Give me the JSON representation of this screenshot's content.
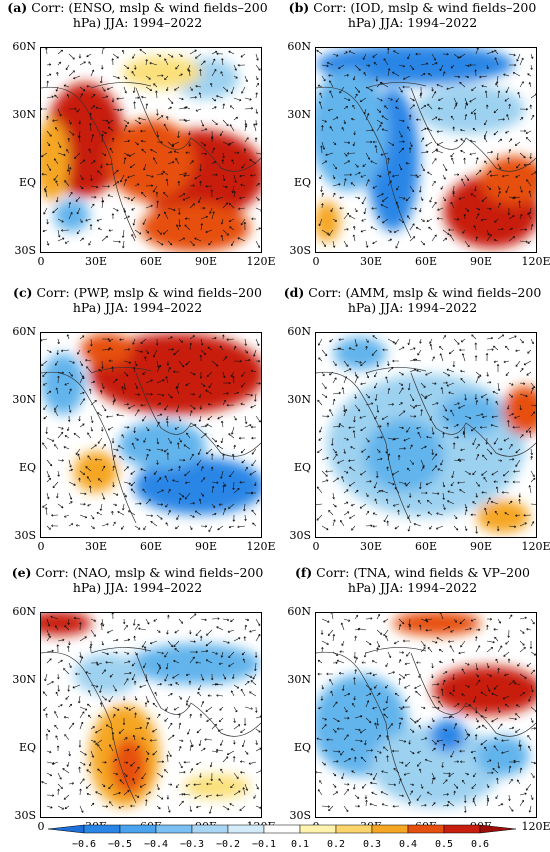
{
  "panels": [
    {
      "id": "a",
      "letter": "(a)",
      "title": " Corr: (ENSO, mslp & wind fields–200 hPa) JJA: 1994–2022",
      "blobs": [
        [
          "#c81e10",
          0.2,
          0.45,
          0.18,
          0.28
        ],
        [
          "#c81e10",
          0.72,
          0.62,
          0.3,
          0.22
        ],
        [
          "#e6500f",
          0.5,
          0.55,
          0.2,
          0.2
        ],
        [
          "#f5a623",
          0.05,
          0.55,
          0.08,
          0.2
        ],
        [
          "#9dd1f0",
          0.75,
          0.15,
          0.15,
          0.1
        ],
        [
          "#62b4ec",
          0.14,
          0.82,
          0.08,
          0.08
        ],
        [
          "#fbe07a",
          0.55,
          0.12,
          0.18,
          0.08
        ],
        [
          "#e6500f",
          0.7,
          0.88,
          0.25,
          0.12
        ]
      ]
    },
    {
      "id": "b",
      "letter": "(b)",
      "title": " Corr: (IOD, mslp & wind fields–200 hPa) JJA: 1994–2022",
      "blobs": [
        [
          "#2a86e6",
          0.45,
          0.08,
          0.45,
          0.1
        ],
        [
          "#2a86e6",
          0.35,
          0.55,
          0.12,
          0.35
        ],
        [
          "#62b4ec",
          0.15,
          0.4,
          0.18,
          0.3
        ],
        [
          "#c81e10",
          0.8,
          0.8,
          0.22,
          0.18
        ],
        [
          "#e6500f",
          0.9,
          0.65,
          0.15,
          0.12
        ],
        [
          "#9dd1f0",
          0.7,
          0.3,
          0.25,
          0.12
        ],
        [
          "#f5a623",
          0.05,
          0.85,
          0.06,
          0.1
        ]
      ]
    },
    {
      "id": "c",
      "letter": "(c)",
      "title": " Corr: (PWP, mslp & wind fields–200 hPa) JJA: 1994–2022",
      "blobs": [
        [
          "#c81e10",
          0.62,
          0.2,
          0.4,
          0.2
        ],
        [
          "#e6500f",
          0.3,
          0.08,
          0.12,
          0.08
        ],
        [
          "#2a86e6",
          0.72,
          0.75,
          0.3,
          0.14
        ],
        [
          "#62b4ec",
          0.55,
          0.55,
          0.2,
          0.12
        ],
        [
          "#f5a623",
          0.25,
          0.68,
          0.1,
          0.1
        ],
        [
          "#62b4ec",
          0.1,
          0.25,
          0.1,
          0.15
        ]
      ]
    },
    {
      "id": "d",
      "letter": "(d)",
      "title": " Corr: (AMM, mslp & wind fields–200 hPa) JJA: 1994–2022",
      "blobs": [
        [
          "#9dd1f0",
          0.5,
          0.55,
          0.45,
          0.35
        ],
        [
          "#62b4ec",
          0.4,
          0.6,
          0.18,
          0.18
        ],
        [
          "#62b4ec",
          0.7,
          0.4,
          0.14,
          0.1
        ],
        [
          "#e6500f",
          0.95,
          0.38,
          0.1,
          0.12
        ],
        [
          "#f5a623",
          0.85,
          0.9,
          0.12,
          0.08
        ],
        [
          "#62b4ec",
          0.2,
          0.1,
          0.12,
          0.08
        ]
      ]
    },
    {
      "id": "e",
      "letter": "(e)",
      "title": " Corr: (NAO, mslp & wind fields–200 hPa) JJA: 1994–2022",
      "blobs": [
        [
          "#c81e10",
          0.08,
          0.05,
          0.15,
          0.06
        ],
        [
          "#f5a623",
          0.38,
          0.7,
          0.16,
          0.25
        ],
        [
          "#e6500f",
          0.4,
          0.75,
          0.08,
          0.14
        ],
        [
          "#62b4ec",
          0.7,
          0.25,
          0.3,
          0.1
        ],
        [
          "#9dd1f0",
          0.3,
          0.3,
          0.15,
          0.1
        ],
        [
          "#fbe07a",
          0.8,
          0.85,
          0.15,
          0.06
        ]
      ]
    },
    {
      "id": "f",
      "letter": "(f)",
      "title": " Corr: (TNA, wind fields & VP–200 hPa) JJA: 1994–2022",
      "blobs": [
        [
          "#c81e10",
          0.78,
          0.38,
          0.25,
          0.12
        ],
        [
          "#e6500f",
          0.55,
          0.05,
          0.2,
          0.06
        ],
        [
          "#62b4ec",
          0.2,
          0.55,
          0.22,
          0.25
        ],
        [
          "#9dd1f0",
          0.55,
          0.75,
          0.3,
          0.2
        ],
        [
          "#62b4ec",
          0.85,
          0.7,
          0.12,
          0.1
        ],
        [
          "#2a86e6",
          0.6,
          0.6,
          0.08,
          0.08
        ]
      ]
    }
  ],
  "axis": {
    "y_ticks": [
      "60N",
      "30N",
      "EQ",
      "30S"
    ],
    "x_ticks": [
      "0",
      "30E",
      "60E",
      "90E",
      "120E"
    ]
  },
  "colorbar": {
    "ticks": [
      "−0.6",
      "−0.5",
      "−0.4",
      "−0.3",
      "−0.2",
      "−0.1",
      "0.1",
      "0.2",
      "0.3",
      "0.4",
      "0.5",
      "0.6"
    ],
    "colors": [
      "#1e6fd9",
      "#2a86e6",
      "#4aa3ef",
      "#7cc0f3",
      "#aad6f6",
      "#d4ecfa",
      "#ffffff",
      "#fff3b0",
      "#fbd46b",
      "#f5a623",
      "#e6500f",
      "#c81e10",
      "#9e0e08"
    ]
  }
}
